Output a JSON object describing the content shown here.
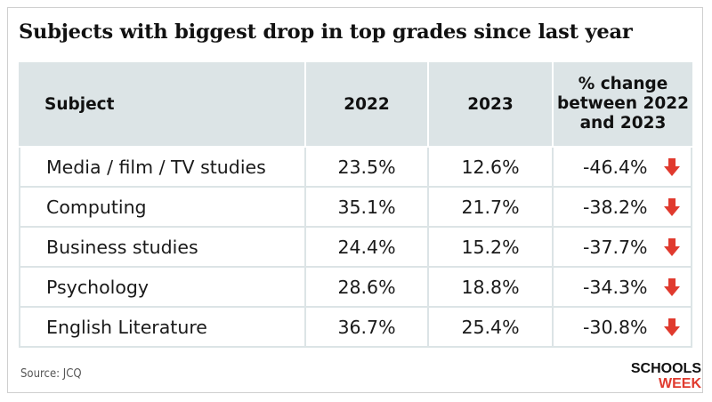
{
  "title": "Subjects with biggest drop in top grades since last year",
  "source": "Source: JCQ",
  "logo": {
    "line1": "SCHOOLS",
    "line2": "WEEK"
  },
  "colors": {
    "header_bg": "#dce4e6",
    "arrow": "#e03a2e",
    "logo_dark": "#111111"
  },
  "chart_data": {
    "type": "table",
    "title": "Subjects with biggest drop in top grades since last year",
    "columns": [
      "Subject",
      "2022",
      "2023",
      "% change between 2022 and 2023"
    ],
    "header_change_lines": [
      "% change",
      "between 2022",
      "and 2023"
    ],
    "rows": [
      {
        "subject": "Media / film / TV studies",
        "y2022": "23.5%",
        "y2023": "12.6%",
        "change": "-46.4%",
        "direction": "down"
      },
      {
        "subject": "Computing",
        "y2022": "35.1%",
        "y2023": "21.7%",
        "change": "-38.2%",
        "direction": "down"
      },
      {
        "subject": "Business studies",
        "y2022": "24.4%",
        "y2023": "15.2%",
        "change": "-37.7%",
        "direction": "down"
      },
      {
        "subject": "Psychology",
        "y2022": "28.6%",
        "y2023": "18.8%",
        "change": "-34.3%",
        "direction": "down"
      },
      {
        "subject": "English Literature",
        "y2022": "36.7%",
        "y2023": "25.4%",
        "change": "-30.8%",
        "direction": "down"
      }
    ]
  }
}
